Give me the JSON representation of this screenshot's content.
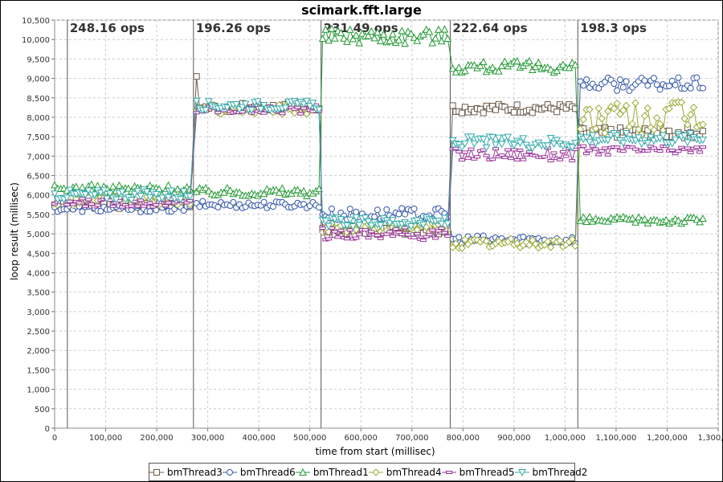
{
  "chart_data": {
    "type": "line",
    "title": "scimark.fft.large",
    "xlabel": "time from start (millisec)",
    "ylabel": "loop result (millisec)",
    "xlim": [
      0,
      1300000
    ],
    "ylim": [
      0,
      10500
    ],
    "grid": true,
    "legend_position": "bottom",
    "x_ticks": [
      "0",
      "100,000",
      "200,000",
      "300,000",
      "400,000",
      "500,000",
      "600,000",
      "700,000",
      "800,000",
      "900,000",
      "1,000,000",
      "1,100,000",
      "1,200,000",
      "1,300,000"
    ],
    "y_ticks": [
      "0",
      "500",
      "1,000",
      "1,500",
      "2,000",
      "2,500",
      "3,000",
      "3,500",
      "4,000",
      "4,500",
      "5,000",
      "5,500",
      "6,000",
      "6,500",
      "7,000",
      "7,500",
      "8,000",
      "8,500",
      "9,000",
      "9,500",
      "10,000",
      "10,500"
    ],
    "phase_markers": [
      {
        "x": 25000,
        "label": "248.16 ops"
      },
      {
        "x": 272000,
        "label": "196.26 ops"
      },
      {
        "x": 522000,
        "label": "231.49 ops"
      },
      {
        "x": 775000,
        "label": "222.64 ops"
      },
      {
        "x": 1025000,
        "label": "198.3 ops"
      }
    ],
    "series": [
      {
        "name": "bmThread3",
        "color": "#6b5a4a",
        "marker": "square",
        "segments": [
          {
            "x0": 0,
            "x1": 265000,
            "base": 5750,
            "amp": 110
          },
          {
            "x0": 278000,
            "x1": 518000,
            "base": 8250,
            "amp": 120,
            "start": 9050
          },
          {
            "x0": 525000,
            "x1": 770000,
            "base": 5100,
            "amp": 120
          },
          {
            "x0": 780000,
            "x1": 1020000,
            "base": 8230,
            "amp": 120
          },
          {
            "x0": 1030000,
            "x1": 1270000,
            "base": 7600,
            "amp": 140
          }
        ]
      },
      {
        "name": "bmThread6",
        "color": "#3355aa",
        "marker": "circle",
        "segments": [
          {
            "x0": 0,
            "x1": 265000,
            "base": 5650,
            "amp": 90
          },
          {
            "x0": 278000,
            "x1": 518000,
            "base": 5750,
            "amp": 90
          },
          {
            "x0": 525000,
            "x1": 770000,
            "base": 5500,
            "amp": 160
          },
          {
            "x0": 780000,
            "x1": 1020000,
            "base": 4850,
            "amp": 110
          },
          {
            "x0": 1030000,
            "x1": 1270000,
            "base": 8850,
            "amp": 170
          }
        ]
      },
      {
        "name": "bmThread1",
        "color": "#229933",
        "marker": "triangle-up",
        "segments": [
          {
            "x0": 0,
            "x1": 265000,
            "base": 6150,
            "amp": 120
          },
          {
            "x0": 278000,
            "x1": 518000,
            "base": 6080,
            "amp": 110
          },
          {
            "x0": 525000,
            "x1": 770000,
            "base": 10100,
            "amp": 200
          },
          {
            "x0": 780000,
            "x1": 1020000,
            "base": 9300,
            "amp": 150
          },
          {
            "x0": 1030000,
            "x1": 1270000,
            "base": 5350,
            "amp": 90
          }
        ]
      },
      {
        "name": "bmThread4",
        "color": "#99aa33",
        "marker": "diamond",
        "segments": [
          {
            "x0": 0,
            "x1": 265000,
            "base": 5850,
            "amp": 120
          },
          {
            "x0": 278000,
            "x1": 518000,
            "base": 8200,
            "amp": 120
          },
          {
            "x0": 525000,
            "x1": 770000,
            "base": 5150,
            "amp": 140
          },
          {
            "x0": 780000,
            "x1": 1020000,
            "base": 4750,
            "amp": 130
          },
          {
            "x0": 1030000,
            "x1": 1270000,
            "base": 8000,
            "amp": 450
          }
        ]
      },
      {
        "name": "bmThread5",
        "color": "#993399",
        "marker": "dash",
        "segments": [
          {
            "x0": 0,
            "x1": 265000,
            "base": 5800,
            "amp": 110
          },
          {
            "x0": 278000,
            "x1": 518000,
            "base": 8200,
            "amp": 120
          },
          {
            "x0": 525000,
            "x1": 770000,
            "base": 5000,
            "amp": 170
          },
          {
            "x0": 780000,
            "x1": 1020000,
            "base": 7050,
            "amp": 170
          },
          {
            "x0": 1030000,
            "x1": 1270000,
            "base": 7150,
            "amp": 120
          }
        ]
      },
      {
        "name": "bmThread2",
        "color": "#33aaaa",
        "marker": "triangle-down",
        "segments": [
          {
            "x0": 0,
            "x1": 265000,
            "base": 6000,
            "amp": 140
          },
          {
            "x0": 278000,
            "x1": 518000,
            "base": 8300,
            "amp": 120
          },
          {
            "x0": 525000,
            "x1": 770000,
            "base": 5300,
            "amp": 120
          },
          {
            "x0": 780000,
            "x1": 1020000,
            "base": 7350,
            "amp": 150
          },
          {
            "x0": 1030000,
            "x1": 1270000,
            "base": 7450,
            "amp": 150
          }
        ]
      }
    ]
  }
}
